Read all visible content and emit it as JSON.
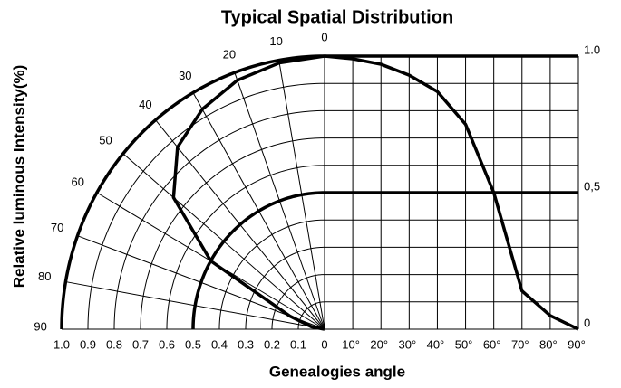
{
  "chart_data": {
    "type": "polar-distribution",
    "title": "Typical Spatial Distribution",
    "ylabel": "Relative luminous Intensity(%)",
    "xlabel": "Genealogies angle",
    "x": [
      0,
      10,
      20,
      30,
      40,
      50,
      60,
      70,
      80,
      90
    ],
    "values": [
      1.0,
      0.99,
      0.97,
      0.93,
      0.87,
      0.75,
      0.5,
      0.14,
      0.05,
      0
    ],
    "color": "#000000",
    "angle_ticks": [
      0,
      10,
      20,
      30,
      40,
      50,
      60,
      70,
      80,
      90
    ],
    "rlim": [
      0,
      1
    ],
    "rticks": [
      {
        "value": 1,
        "label": "1.0"
      },
      0.9,
      0.8,
      0.7,
      0.6,
      0.5,
      0.4,
      0.3,
      0.2,
      0.1,
      0
    ],
    "xlim": [
      0,
      90
    ],
    "xticks": [
      {
        "value": 10,
        "label": "10°"
      },
      {
        "value": 20,
        "label": "20°"
      },
      {
        "value": 30,
        "label": "30°"
      },
      {
        "value": 40,
        "label": "40°"
      },
      {
        "value": 50,
        "label": "50°"
      },
      {
        "value": 60,
        "label": "60°"
      },
      {
        "value": 70,
        "label": "70°"
      },
      {
        "value": 80,
        "label": "80°"
      },
      {
        "value": 90,
        "label": "90°"
      }
    ],
    "ylim": [
      0,
      1
    ],
    "yticks": [
      0,
      {
        "value": 0.5,
        "label": "0,5"
      },
      {
        "value": 1,
        "label": "1.0"
      }
    ]
  }
}
